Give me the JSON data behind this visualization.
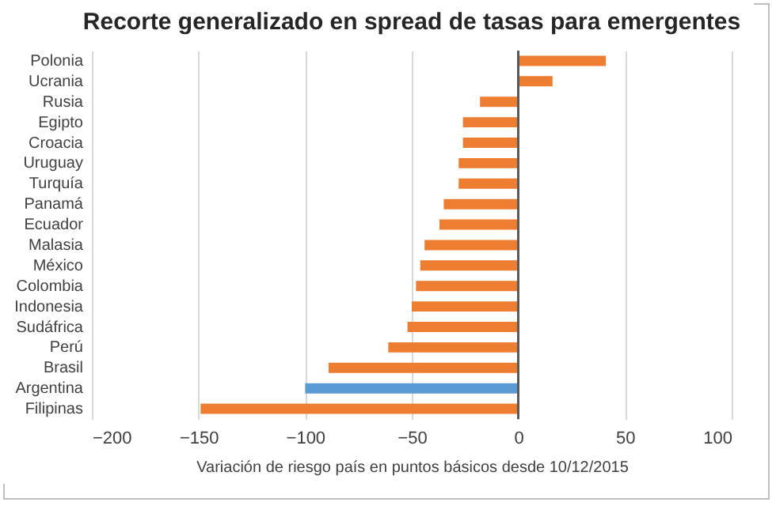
{
  "chart_data": {
    "type": "bar",
    "orientation": "horizontal",
    "title": "Recorte generalizado en spread de tasas para emergentes",
    "xlabel": "Variación de riesgo país en puntos básicos desde 10/12/2015",
    "categories": [
      "Polonia",
      "Ucrania",
      "Rusia",
      "Egipto",
      "Croacia",
      "Uruguay",
      "Turquía",
      "Panamá",
      "Ecuador",
      "Malasia",
      "México",
      "Colombia",
      "Indonesia",
      "Sudáfrica",
      "Perú",
      "Brasil",
      "Argentina",
      "Filipinas"
    ],
    "values": [
      41,
      16,
      -18,
      -26,
      -26,
      -28,
      -28,
      -35,
      -37,
      -44,
      -46,
      -48,
      -50,
      -52,
      -61,
      -89,
      -100,
      -149
    ],
    "colors": [
      "#ed7d31",
      "#ed7d31",
      "#ed7d31",
      "#ed7d31",
      "#ed7d31",
      "#ed7d31",
      "#ed7d31",
      "#ed7d31",
      "#ed7d31",
      "#ed7d31",
      "#ed7d31",
      "#ed7d31",
      "#ed7d31",
      "#ed7d31",
      "#ed7d31",
      "#ed7d31",
      "#5b9bd5",
      "#ed7d31"
    ],
    "xlim": [
      -200,
      100
    ],
    "xticks": [
      -200,
      -150,
      -100,
      -50,
      0,
      50,
      100
    ],
    "grid": "x"
  }
}
